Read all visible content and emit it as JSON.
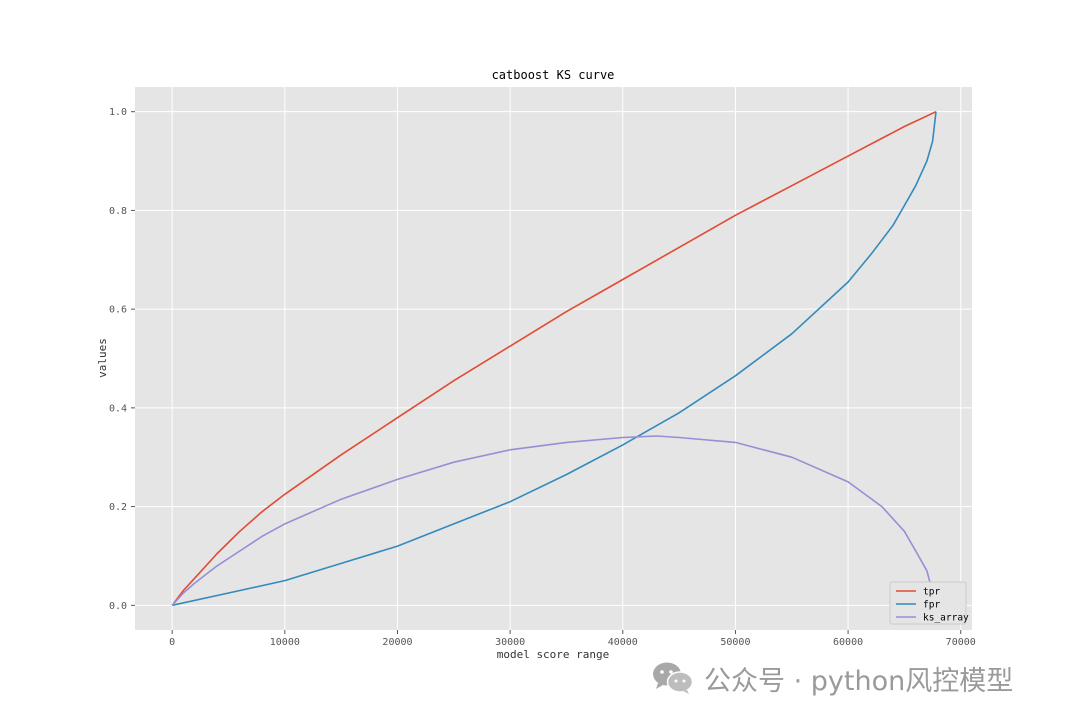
{
  "chart_data": {
    "type": "line",
    "title": "catboost KS curve",
    "xlabel": "model score range",
    "ylabel": "values",
    "xlim": [
      -3300,
      71000
    ],
    "ylim": [
      -0.05,
      1.05
    ],
    "xticks": [
      0,
      10000,
      20000,
      30000,
      40000,
      50000,
      60000,
      70000
    ],
    "yticks": [
      0.0,
      0.2,
      0.4,
      0.6,
      0.8,
      1.0
    ],
    "xtick_labels": [
      "0",
      "10000",
      "20000",
      "30000",
      "40000",
      "50000",
      "60000",
      "70000"
    ],
    "ytick_labels": [
      "0.0",
      "0.2",
      "0.4",
      "0.6",
      "0.8",
      "1.0"
    ],
    "grid": true,
    "legend_position": "bottom-right",
    "series": [
      {
        "name": "tpr",
        "color": "#e24a33",
        "x": [
          0,
          1000,
          2000,
          4000,
          6000,
          8000,
          10000,
          15000,
          20000,
          25000,
          30000,
          35000,
          40000,
          45000,
          50000,
          55000,
          60000,
          65000,
          67800
        ],
        "y": [
          0.0,
          0.03,
          0.055,
          0.105,
          0.15,
          0.19,
          0.225,
          0.305,
          0.38,
          0.455,
          0.525,
          0.595,
          0.66,
          0.725,
          0.79,
          0.85,
          0.91,
          0.97,
          1.0
        ]
      },
      {
        "name": "fpr",
        "color": "#348abd",
        "x": [
          0,
          5000,
          10000,
          15000,
          20000,
          25000,
          30000,
          35000,
          40000,
          45000,
          50000,
          55000,
          60000,
          62000,
          64000,
          65000,
          66000,
          67000,
          67500,
          67800
        ],
        "y": [
          0.0,
          0.025,
          0.05,
          0.085,
          0.12,
          0.165,
          0.21,
          0.265,
          0.325,
          0.39,
          0.465,
          0.55,
          0.655,
          0.71,
          0.77,
          0.81,
          0.85,
          0.9,
          0.94,
          1.0
        ]
      },
      {
        "name": "ks_array",
        "color": "#988ed5",
        "x": [
          0,
          1000,
          2000,
          4000,
          6000,
          8000,
          10000,
          15000,
          20000,
          25000,
          30000,
          35000,
          40000,
          43000,
          45000,
          50000,
          55000,
          60000,
          63000,
          65000,
          66000,
          67000,
          67800
        ],
        "y": [
          0.0,
          0.025,
          0.045,
          0.08,
          0.11,
          0.14,
          0.165,
          0.215,
          0.255,
          0.29,
          0.315,
          0.33,
          0.34,
          0.343,
          0.34,
          0.33,
          0.3,
          0.25,
          0.2,
          0.15,
          0.11,
          0.07,
          0.0
        ]
      }
    ]
  },
  "watermark": {
    "text": "公众号 · python风控模型",
    "logo_icon": "wechat-icon"
  }
}
